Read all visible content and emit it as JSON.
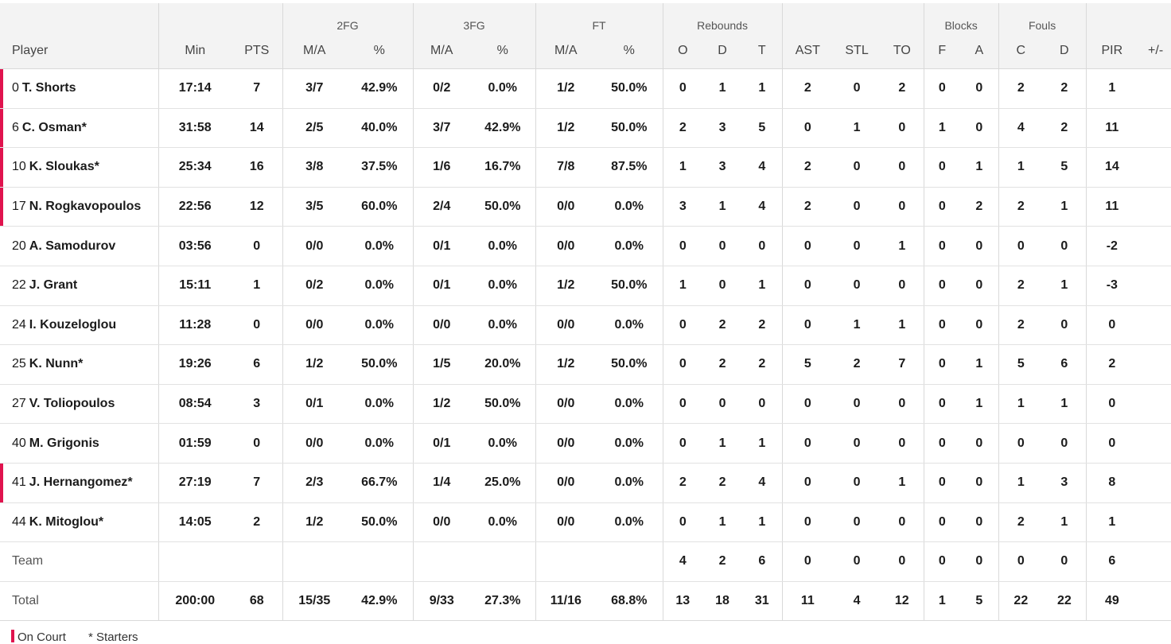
{
  "headers": {
    "groups": {
      "fg2": "2FG",
      "fg3": "3FG",
      "ft": "FT",
      "rebounds": "Rebounds",
      "blocks": "Blocks",
      "fouls": "Fouls"
    },
    "labels": {
      "player": "Player",
      "min": "Min",
      "pts": "PTS",
      "fg2_ma": "M/A",
      "fg2_pct": "%",
      "fg3_ma": "M/A",
      "fg3_pct": "%",
      "ft_ma": "M/A",
      "ft_pct": "%",
      "reb_o": "O",
      "reb_d": "D",
      "reb_t": "T",
      "ast": "AST",
      "stl": "STL",
      "to": "TO",
      "blk_f": "F",
      "blk_a": "A",
      "foul_c": "C",
      "foul_d": "D",
      "pir": "PIR",
      "pm": "+/-"
    }
  },
  "rows": [
    {
      "num": "0",
      "name": "T. Shorts",
      "on_court": true,
      "min": "17:14",
      "pts": "7",
      "fg2_ma": "3/7",
      "fg2_pct": "42.9%",
      "fg3_ma": "0/2",
      "fg3_pct": "0.0%",
      "ft_ma": "1/2",
      "ft_pct": "50.0%",
      "o": "0",
      "d": "1",
      "t": "1",
      "ast": "2",
      "stl": "0",
      "to": "2",
      "bf": "0",
      "ba": "0",
      "fc": "2",
      "fd": "2",
      "pir": "1",
      "pm": ""
    },
    {
      "num": "6",
      "name": "C. Osman*",
      "on_court": true,
      "min": "31:58",
      "pts": "14",
      "fg2_ma": "2/5",
      "fg2_pct": "40.0%",
      "fg3_ma": "3/7",
      "fg3_pct": "42.9%",
      "ft_ma": "1/2",
      "ft_pct": "50.0%",
      "o": "2",
      "d": "3",
      "t": "5",
      "ast": "0",
      "stl": "1",
      "to": "0",
      "bf": "1",
      "ba": "0",
      "fc": "4",
      "fd": "2",
      "pir": "11",
      "pm": ""
    },
    {
      "num": "10",
      "name": "K. Sloukas*",
      "on_court": true,
      "min": "25:34",
      "pts": "16",
      "fg2_ma": "3/8",
      "fg2_pct": "37.5%",
      "fg3_ma": "1/6",
      "fg3_pct": "16.7%",
      "ft_ma": "7/8",
      "ft_pct": "87.5%",
      "o": "1",
      "d": "3",
      "t": "4",
      "ast": "2",
      "stl": "0",
      "to": "0",
      "bf": "0",
      "ba": "1",
      "fc": "1",
      "fd": "5",
      "pir": "14",
      "pm": ""
    },
    {
      "num": "17",
      "name": "N. Rogkavopoulos",
      "on_court": true,
      "min": "22:56",
      "pts": "12",
      "fg2_ma": "3/5",
      "fg2_pct": "60.0%",
      "fg3_ma": "2/4",
      "fg3_pct": "50.0%",
      "ft_ma": "0/0",
      "ft_pct": "0.0%",
      "o": "3",
      "d": "1",
      "t": "4",
      "ast": "2",
      "stl": "0",
      "to": "0",
      "bf": "0",
      "ba": "2",
      "fc": "2",
      "fd": "1",
      "pir": "11",
      "pm": ""
    },
    {
      "num": "20",
      "name": "A. Samodurov",
      "on_court": false,
      "min": "03:56",
      "pts": "0",
      "fg2_ma": "0/0",
      "fg2_pct": "0.0%",
      "fg3_ma": "0/1",
      "fg3_pct": "0.0%",
      "ft_ma": "0/0",
      "ft_pct": "0.0%",
      "o": "0",
      "d": "0",
      "t": "0",
      "ast": "0",
      "stl": "0",
      "to": "1",
      "bf": "0",
      "ba": "0",
      "fc": "0",
      "fd": "0",
      "pir": "-2",
      "pm": ""
    },
    {
      "num": "22",
      "name": "J. Grant",
      "on_court": false,
      "min": "15:11",
      "pts": "1",
      "fg2_ma": "0/2",
      "fg2_pct": "0.0%",
      "fg3_ma": "0/1",
      "fg3_pct": "0.0%",
      "ft_ma": "1/2",
      "ft_pct": "50.0%",
      "o": "1",
      "d": "0",
      "t": "1",
      "ast": "0",
      "stl": "0",
      "to": "0",
      "bf": "0",
      "ba": "0",
      "fc": "2",
      "fd": "1",
      "pir": "-3",
      "pm": ""
    },
    {
      "num": "24",
      "name": "I. Kouzeloglou",
      "on_court": false,
      "min": "11:28",
      "pts": "0",
      "fg2_ma": "0/0",
      "fg2_pct": "0.0%",
      "fg3_ma": "0/0",
      "fg3_pct": "0.0%",
      "ft_ma": "0/0",
      "ft_pct": "0.0%",
      "o": "0",
      "d": "2",
      "t": "2",
      "ast": "0",
      "stl": "1",
      "to": "1",
      "bf": "0",
      "ba": "0",
      "fc": "2",
      "fd": "0",
      "pir": "0",
      "pm": ""
    },
    {
      "num": "25",
      "name": "K. Nunn*",
      "on_court": false,
      "min": "19:26",
      "pts": "6",
      "fg2_ma": "1/2",
      "fg2_pct": "50.0%",
      "fg3_ma": "1/5",
      "fg3_pct": "20.0%",
      "ft_ma": "1/2",
      "ft_pct": "50.0%",
      "o": "0",
      "d": "2",
      "t": "2",
      "ast": "5",
      "stl": "2",
      "to": "7",
      "bf": "0",
      "ba": "1",
      "fc": "5",
      "fd": "6",
      "pir": "2",
      "pm": ""
    },
    {
      "num": "27",
      "name": "V. Toliopoulos",
      "on_court": false,
      "min": "08:54",
      "pts": "3",
      "fg2_ma": "0/1",
      "fg2_pct": "0.0%",
      "fg3_ma": "1/2",
      "fg3_pct": "50.0%",
      "ft_ma": "0/0",
      "ft_pct": "0.0%",
      "o": "0",
      "d": "0",
      "t": "0",
      "ast": "0",
      "stl": "0",
      "to": "0",
      "bf": "0",
      "ba": "1",
      "fc": "1",
      "fd": "1",
      "pir": "0",
      "pm": ""
    },
    {
      "num": "40",
      "name": "M. Grigonis",
      "on_court": false,
      "min": "01:59",
      "pts": "0",
      "fg2_ma": "0/0",
      "fg2_pct": "0.0%",
      "fg3_ma": "0/1",
      "fg3_pct": "0.0%",
      "ft_ma": "0/0",
      "ft_pct": "0.0%",
      "o": "0",
      "d": "1",
      "t": "1",
      "ast": "0",
      "stl": "0",
      "to": "0",
      "bf": "0",
      "ba": "0",
      "fc": "0",
      "fd": "0",
      "pir": "0",
      "pm": ""
    },
    {
      "num": "41",
      "name": "J. Hernangomez*",
      "on_court": true,
      "min": "27:19",
      "pts": "7",
      "fg2_ma": "2/3",
      "fg2_pct": "66.7%",
      "fg3_ma": "1/4",
      "fg3_pct": "25.0%",
      "ft_ma": "0/0",
      "ft_pct": "0.0%",
      "o": "2",
      "d": "2",
      "t": "4",
      "ast": "0",
      "stl": "0",
      "to": "1",
      "bf": "0",
      "ba": "0",
      "fc": "1",
      "fd": "3",
      "pir": "8",
      "pm": ""
    },
    {
      "num": "44",
      "name": "K. Mitoglou*",
      "on_court": false,
      "min": "14:05",
      "pts": "2",
      "fg2_ma": "1/2",
      "fg2_pct": "50.0%",
      "fg3_ma": "0/0",
      "fg3_pct": "0.0%",
      "ft_ma": "0/0",
      "ft_pct": "0.0%",
      "o": "0",
      "d": "1",
      "t": "1",
      "ast": "0",
      "stl": "0",
      "to": "0",
      "bf": "0",
      "ba": "0",
      "fc": "2",
      "fd": "1",
      "pir": "1",
      "pm": ""
    }
  ],
  "team": {
    "label": "Team",
    "o": "4",
    "d": "2",
    "t": "6",
    "ast": "0",
    "stl": "0",
    "to": "0",
    "bf": "0",
    "ba": "0",
    "fc": "0",
    "fd": "0",
    "pir": "6"
  },
  "total": {
    "label": "Total",
    "min": "200:00",
    "pts": "68",
    "fg2_ma": "15/35",
    "fg2_pct": "42.9%",
    "fg3_ma": "9/33",
    "fg3_pct": "27.3%",
    "ft_ma": "11/16",
    "ft_pct": "68.8%",
    "o": "13",
    "d": "18",
    "t": "31",
    "ast": "11",
    "stl": "4",
    "to": "12",
    "bf": "1",
    "ba": "5",
    "fc": "22",
    "fd": "22",
    "pir": "49"
  },
  "legend": {
    "on_court": "On Court",
    "starters": "* Starters"
  },
  "colors": {
    "accent": "#e0134e",
    "header_bg": "#f3f3f3"
  }
}
